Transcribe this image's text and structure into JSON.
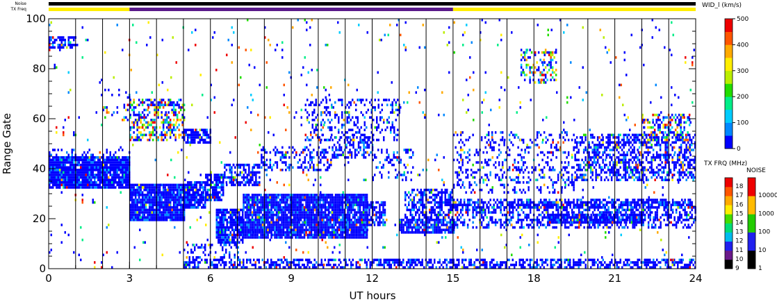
{
  "chart_data": {
    "type": "heatmap",
    "title": "",
    "xlabel": "UT hours",
    "ylabel": "Range Gate",
    "xlim": [
      0,
      24
    ],
    "ylim": [
      0,
      100
    ],
    "x_ticks": [
      "0",
      "3",
      "6",
      "9",
      "12",
      "15",
      "18",
      "21",
      "24"
    ],
    "y_ticks": [
      "0",
      "20",
      "40",
      "60",
      "80",
      "100"
    ],
    "hour_gridlines": true,
    "strip_labels": {
      "noise": "Noise",
      "txfreq": "TX Freq"
    },
    "noise_strip": [
      {
        "x0": 0,
        "x1": 24,
        "color": "#000000"
      }
    ],
    "txfreq_strip": [
      {
        "x0": 0,
        "x1": 3,
        "color": "#ffee00"
      },
      {
        "x0": 3,
        "x1": 15,
        "color": "#5a1a8a"
      },
      {
        "x0": 15,
        "x1": 24,
        "color": "#ffee00"
      }
    ],
    "colorbars": {
      "width": {
        "title": "WID_l (km/s)",
        "range": [
          0,
          500
        ],
        "ticks": [
          "0",
          "100",
          "200",
          "300",
          "400",
          "500"
        ],
        "colors": [
          "#0000ff",
          "#0088ff",
          "#00ccff",
          "#00ee88",
          "#22dd00",
          "#bbee00",
          "#ffee00",
          "#ffaa00",
          "#ff5500",
          "#ee0000"
        ]
      },
      "txfreq": {
        "title": "TX FRQ (MHz)",
        "ticks": [
          "9",
          "10",
          "11",
          "12",
          "13",
          "14",
          "15",
          "16",
          "17",
          "18"
        ],
        "colors": [
          "#000000",
          "#6a1a8a",
          "#2020ee",
          "#00bbee",
          "#00dd77",
          "#44dd00",
          "#ffee00",
          "#ffaa00",
          "#ff5500",
          "#ee0000"
        ]
      },
      "noise": {
        "title": "NOISE",
        "ticks": [
          "1",
          "10",
          "100",
          "1000",
          "10000"
        ],
        "colors": [
          "#000000",
          "#2020ee",
          "#22cc00",
          "#ffbb00",
          "#ee0000"
        ]
      }
    },
    "echo_regions": [
      {
        "x0": 0.0,
        "x1": 3.0,
        "y0": 32,
        "y1": 45,
        "density": 0.95,
        "hi": 0.02
      },
      {
        "x0": 0.0,
        "x1": 3.0,
        "y0": 45,
        "y1": 48,
        "density": 0.25,
        "hi": 0.05
      },
      {
        "x0": 3.0,
        "x1": 5.0,
        "y0": 19,
        "y1": 34,
        "density": 0.95,
        "hi": 0.02
      },
      {
        "x0": 5.0,
        "x1": 5.8,
        "y0": 24,
        "y1": 35,
        "density": 0.9,
        "hi": 0.02
      },
      {
        "x0": 5.8,
        "x1": 6.5,
        "y0": 27,
        "y1": 38,
        "density": 0.8,
        "hi": 0.03
      },
      {
        "x0": 6.5,
        "x1": 7.8,
        "y0": 33,
        "y1": 42,
        "density": 0.55,
        "hi": 0.04
      },
      {
        "x0": 7.8,
        "x1": 10.5,
        "y0": 40,
        "y1": 49,
        "density": 0.35,
        "hi": 0.04
      },
      {
        "x0": 10.5,
        "x1": 12.0,
        "y0": 45,
        "y1": 53,
        "density": 0.4,
        "hi": 0.04
      },
      {
        "x0": 6.2,
        "x1": 7.2,
        "y0": 10,
        "y1": 24,
        "density": 0.9,
        "hi": 0.02
      },
      {
        "x0": 7.2,
        "x1": 11.8,
        "y0": 12,
        "y1": 30,
        "density": 0.93,
        "hi": 0.03
      },
      {
        "x0": 11.8,
        "x1": 12.5,
        "y0": 17,
        "y1": 27,
        "density": 0.6,
        "hi": 0.03
      },
      {
        "x0": 13.0,
        "x1": 15.0,
        "y0": 14,
        "y1": 20,
        "density": 0.85,
        "hi": 0.02
      },
      {
        "x0": 13.2,
        "x1": 15.0,
        "y0": 20,
        "y1": 32,
        "density": 0.55,
        "hi": 0.04
      },
      {
        "x0": 9.5,
        "x1": 13.0,
        "y0": 52,
        "y1": 68,
        "density": 0.3,
        "hi": 0.05
      },
      {
        "x0": 12.0,
        "x1": 13.5,
        "y0": 35,
        "y1": 48,
        "density": 0.25,
        "hi": 0.05
      },
      {
        "x0": 5.0,
        "x1": 6.0,
        "y0": 51,
        "y1": 56,
        "density": 0.8,
        "hi": 0.03
      },
      {
        "x0": 3.0,
        "x1": 5.0,
        "y0": 52,
        "y1": 68,
        "density": 0.45,
        "hi": 0.55
      },
      {
        "x0": 2.0,
        "x1": 3.0,
        "y0": 60,
        "y1": 72,
        "density": 0.15,
        "hi": 0.4
      },
      {
        "x0": 0.0,
        "x1": 1.0,
        "y0": 88,
        "y1": 93,
        "density": 0.6,
        "hi": 0.1
      },
      {
        "x0": 15.0,
        "x1": 24.0,
        "y0": 16,
        "y1": 28,
        "density": 0.45,
        "hi": 0.04
      },
      {
        "x0": 18.5,
        "x1": 22.0,
        "y0": 18,
        "y1": 22,
        "density": 0.85,
        "hi": 0.02
      },
      {
        "x0": 15.0,
        "x1": 24.0,
        "y0": 24,
        "y1": 27,
        "density": 0.55,
        "hi": 0.03
      },
      {
        "x0": 19.5,
        "x1": 24.0,
        "y0": 36,
        "y1": 54,
        "density": 0.5,
        "hi": 0.08
      },
      {
        "x0": 15.0,
        "x1": 19.5,
        "y0": 30,
        "y1": 55,
        "density": 0.22,
        "hi": 0.06
      },
      {
        "x0": 22.0,
        "x1": 23.8,
        "y0": 52,
        "y1": 62,
        "density": 0.45,
        "hi": 0.5
      },
      {
        "x0": 17.5,
        "x1": 18.8,
        "y0": 75,
        "y1": 88,
        "density": 0.35,
        "hi": 0.5
      },
      {
        "x0": 5.0,
        "x1": 24.0,
        "y0": 0,
        "y1": 4,
        "density": 0.55,
        "hi": 0.03
      },
      {
        "x0": 5.0,
        "x1": 7.0,
        "y0": 4,
        "y1": 10,
        "density": 0.3,
        "hi": 0.05
      },
      {
        "x0": 0.0,
        "x1": 24.0,
        "y0": 0,
        "y1": 100,
        "density": 0.018,
        "hi": 0.45
      }
    ]
  }
}
